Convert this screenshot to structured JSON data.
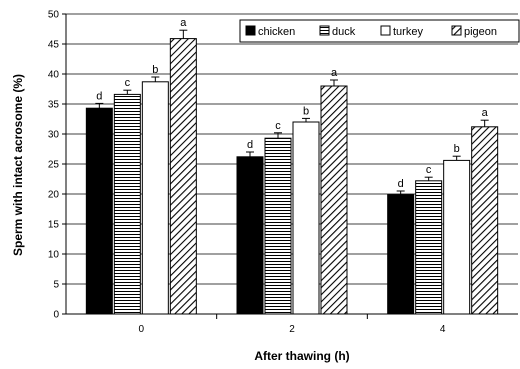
{
  "chart_data": {
    "type": "bar",
    "xlabel": "After thawing (h)",
    "ylabel": "Sperm with intact acrosome (%)",
    "ylim": [
      0,
      50
    ],
    "yticks": [
      0,
      5,
      10,
      15,
      20,
      25,
      30,
      35,
      40,
      45,
      50
    ],
    "grid": "horizontal",
    "legend_position": "top-right",
    "categories": [
      "0",
      "2",
      "4"
    ],
    "series": [
      {
        "name": "chicken",
        "pattern": "solid",
        "color": "#000000",
        "values": [
          34.3,
          26.2,
          19.9
        ],
        "errors": [
          0.8,
          0.8,
          0.6
        ],
        "letters": [
          "d",
          "d",
          "d"
        ]
      },
      {
        "name": "duck",
        "pattern": "horizontal-stripes",
        "color": "#000000",
        "values": [
          36.6,
          29.3,
          22.2
        ],
        "errors": [
          0.7,
          0.9,
          0.6
        ],
        "letters": [
          "c",
          "c",
          "c"
        ]
      },
      {
        "name": "turkey",
        "pattern": "white",
        "color": "#000000",
        "values": [
          38.7,
          32.0,
          25.6
        ],
        "errors": [
          0.8,
          0.6,
          0.7
        ],
        "letters": [
          "b",
          "b",
          "b"
        ]
      },
      {
        "name": "pigeon",
        "pattern": "diagonal-hatch",
        "color": "#000000",
        "values": [
          45.9,
          38.0,
          31.2
        ],
        "errors": [
          1.4,
          1.0,
          1.1
        ],
        "letters": [
          "a",
          "a",
          "a"
        ]
      }
    ]
  }
}
